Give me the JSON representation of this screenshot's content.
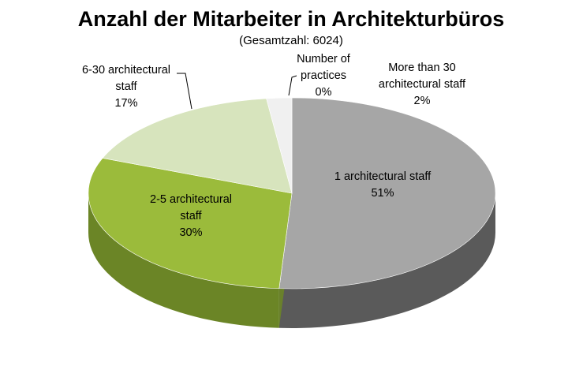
{
  "chart_data": {
    "type": "pie",
    "title": "Anzahl der Mitarbeiter in Architekturbüros",
    "subtitle": "(Gesamtzahl: 6024)",
    "style": "3d",
    "slices": [
      {
        "label_lines": [
          "1 architectural staff"
        ],
        "label": "1 architectural staff",
        "value": 51,
        "value_label": "51%",
        "color": "#a6a6a6",
        "side_color": "#5a5a5a"
      },
      {
        "label_lines": [
          "2-5 architectural",
          "staff"
        ],
        "label": "2-5 architectural staff",
        "value": 30,
        "value_label": "30%",
        "color": "#9bbb3b",
        "side_color": "#6b8526"
      },
      {
        "label_lines": [
          "6-30 architectural",
          "staff"
        ],
        "label": "6-30 architectural staff",
        "value": 17,
        "value_label": "17%",
        "color": "#d7e4bd",
        "side_color": "#a9b98d"
      },
      {
        "label_lines": [
          "More than 30",
          "architectural staff"
        ],
        "label": "More than 30 architectural staff",
        "value": 2,
        "value_label": "2%",
        "color": "#f0f0f0",
        "side_color": "#c8c8c8"
      },
      {
        "label_lines": [
          "Number of",
          "practices"
        ],
        "label": "Number of practices",
        "value": 0,
        "value_label": "0%",
        "color": "#ffffff",
        "side_color": "#dddddd"
      }
    ]
  }
}
